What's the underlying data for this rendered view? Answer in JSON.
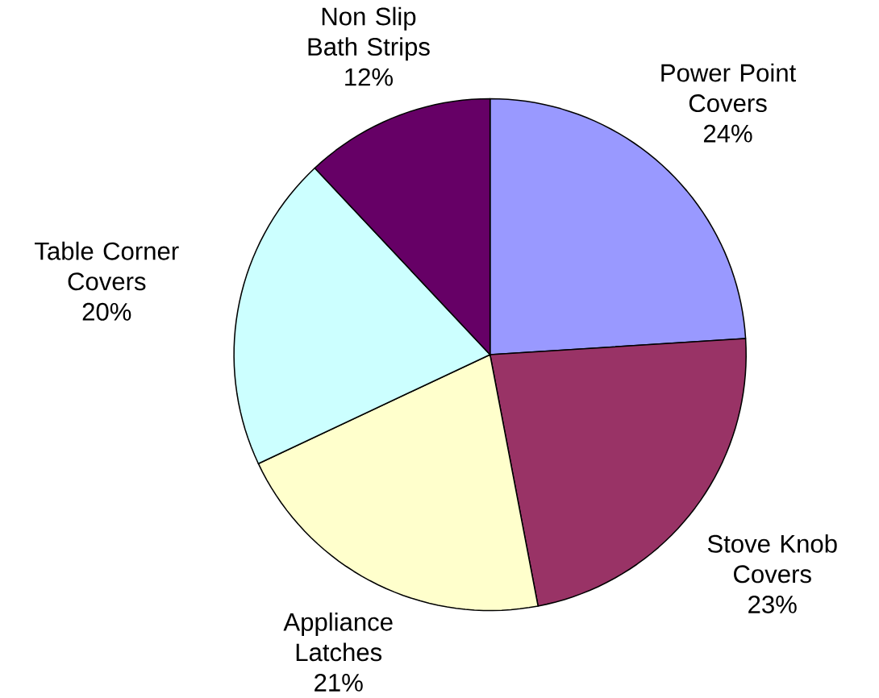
{
  "chart_data": {
    "type": "pie",
    "categories": [
      "Power Point Covers",
      "Stove Knob Covers",
      "Appliance Latches",
      "Table Corner Covers",
      "Non Slip Bath Strips"
    ],
    "values": [
      24,
      23,
      21,
      20,
      12
    ],
    "value_labels": [
      "24%",
      "23%",
      "21%",
      "20%",
      "12%"
    ],
    "colors": [
      "#9999ff",
      "#993366",
      "#ffffcc",
      "#ccffff",
      "#660066"
    ]
  }
}
